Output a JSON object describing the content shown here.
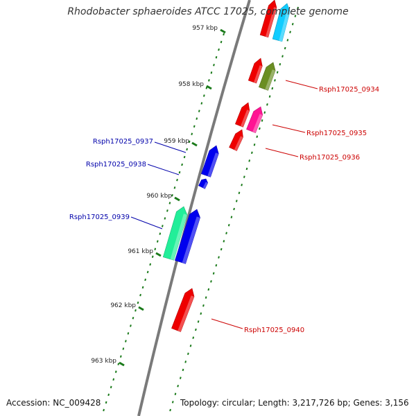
{
  "title": "Rhodobacter sphaeroides ATCC 17025, complete genome",
  "accession_text": "Accession: NC_009428",
  "topology_text": "Topology: circular; Length: 3,217,726 bp; Genes: 3,156",
  "colors": {
    "backbone": "#7a7a7a",
    "tick": "#1a7a1a",
    "label_forward": "#cc0000",
    "label_reverse": "#0000aa"
  },
  "scale_ticks": [
    {
      "label": "957 kbp"
    },
    {
      "label": "958 kbp"
    },
    {
      "label": "959 kbp"
    },
    {
      "label": "960 kbp"
    },
    {
      "label": "961 kbp"
    },
    {
      "label": "962 kbp"
    },
    {
      "label": "963 kbp"
    }
  ],
  "features": [
    {
      "color": "#ee0000",
      "strand": "+",
      "label": ""
    },
    {
      "color": "#11ccff",
      "strand": "+",
      "label": ""
    },
    {
      "color": "#ee0000",
      "strand": "+",
      "label": ""
    },
    {
      "color": "#6b8e23",
      "strand": "+",
      "label": "Rsph17025_0934"
    },
    {
      "color": "#ee0000",
      "strand": "+",
      "label": ""
    },
    {
      "color": "#ff1493",
      "strand": "+",
      "label": "Rsph17025_0935"
    },
    {
      "color": "#ee0000",
      "strand": "+",
      "label": "Rsph17025_0936"
    },
    {
      "color": "#0000ee",
      "strand": "-",
      "label": "Rsph17025_0937"
    },
    {
      "color": "#0000ee",
      "strand": "-",
      "label": "Rsph17025_0938"
    },
    {
      "color": "#22ee99",
      "strand": "-",
      "label": "Rsph17025_0939"
    },
    {
      "color": "#0000ee",
      "strand": "-",
      "label": ""
    },
    {
      "color": "#ee0000",
      "strand": "+",
      "label": "Rsph17025_0940"
    }
  ]
}
